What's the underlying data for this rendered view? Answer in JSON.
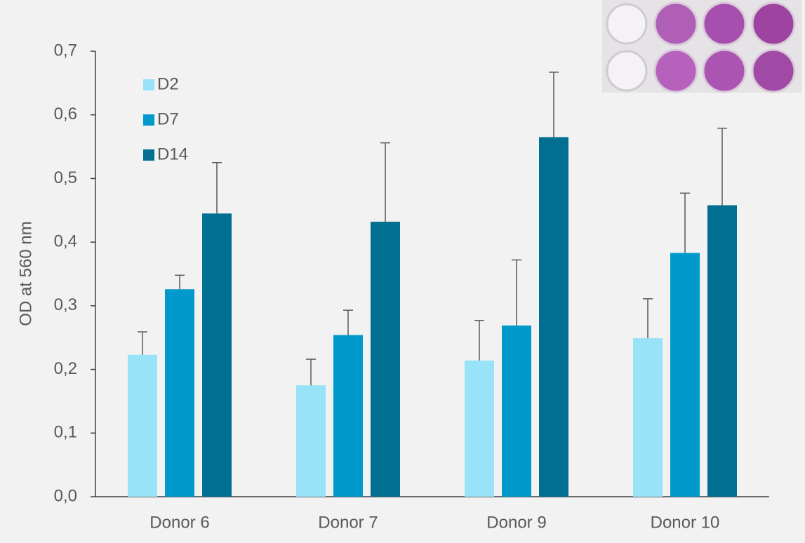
{
  "chart_data": {
    "type": "bar",
    "y_label": "OD at 560 nm",
    "categories": [
      "Donor 6",
      "Donor 7",
      "Donor 9",
      "Donor 10"
    ],
    "series": [
      {
        "name": "D2",
        "color": "#99e3f9",
        "values": [
          0.223,
          0.175,
          0.214,
          0.249
        ],
        "errors": [
          0.036,
          0.041,
          0.063,
          0.062
        ]
      },
      {
        "name": "D7",
        "color": "#0099cc",
        "values": [
          0.326,
          0.254,
          0.269,
          0.383
        ],
        "errors": [
          0.022,
          0.039,
          0.103,
          0.094
        ]
      },
      {
        "name": "D14",
        "color": "#006f91",
        "values": [
          0.445,
          0.432,
          0.565,
          0.458
        ],
        "errors": [
          0.08,
          0.124,
          0.102,
          0.121
        ]
      }
    ],
    "ylim": [
      0,
      0.7
    ],
    "yticks": [
      {
        "value": 0,
        "label": "0,0"
      },
      {
        "value": 0.1,
        "label": "0,1"
      },
      {
        "value": 0.2,
        "label": "0,2"
      },
      {
        "value": 0.3,
        "label": "0,3"
      },
      {
        "value": 0.4,
        "label": "0,4"
      },
      {
        "value": 0.5,
        "label": "0,5"
      },
      {
        "value": 0.6,
        "label": "0,6"
      },
      {
        "value": 0.7,
        "label": "0,7"
      }
    ],
    "legend": "top-left"
  }
}
